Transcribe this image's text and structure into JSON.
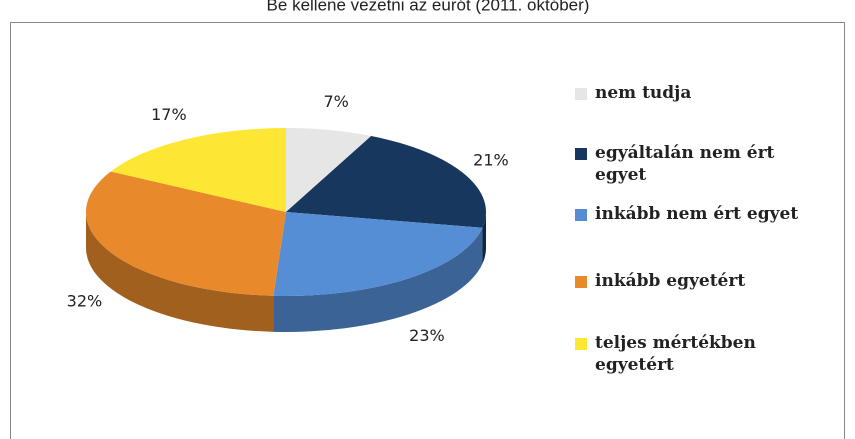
{
  "chart_data": {
    "type": "pie",
    "title": "Be kellene vezetni az eurót (2011. október)",
    "categories": [
      "nem tudja",
      "egyáltalán nem ért egyet",
      "inkább nem ért egyet",
      "inkább egyetért",
      "teljes mértékben egyetért"
    ],
    "values": [
      7,
      21,
      23,
      32,
      17
    ],
    "value_labels": [
      "7%",
      "21%",
      "23%",
      "32%",
      "17%"
    ],
    "colors": [
      "#e6e6e6",
      "#17375e",
      "#558ed5",
      "#e8892b",
      "#fde734"
    ],
    "legend": "right"
  }
}
